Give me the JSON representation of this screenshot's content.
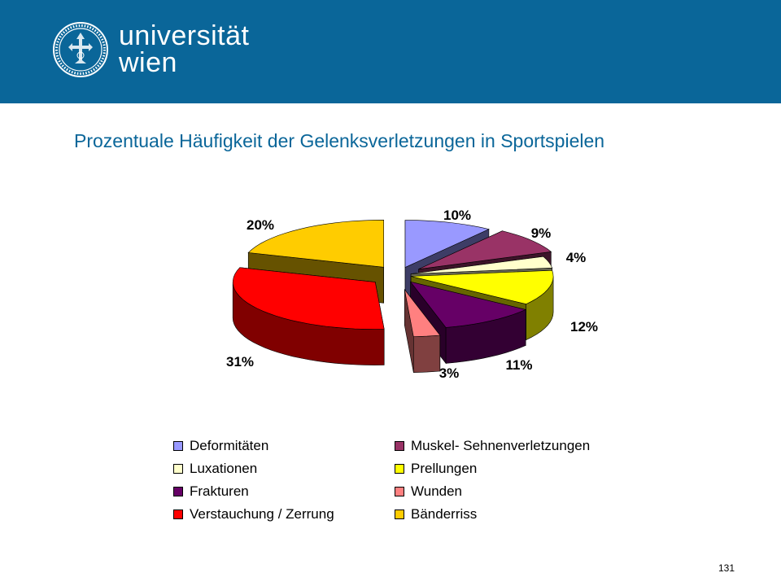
{
  "header": {
    "logo_line1": "universität",
    "logo_line2": "wien",
    "brand_color": "#0a6699",
    "seal_icon": "university-seal-icon"
  },
  "slide_title": "Prozentuale Häufigkeit der Gelenksverletzungen in Sportspielen",
  "page_number": "131",
  "chart_data": {
    "type": "pie",
    "style": "3d-exploded",
    "title": "",
    "legend_position": "bottom",
    "categories": [
      "Deformitäten",
      "Muskel- Sehnenverletzungen",
      "Luxationen",
      "Prellungen",
      "Frakturen",
      "Wunden",
      "Verstauchung / Zerrung",
      "Bänderriss"
    ],
    "values": [
      10,
      9,
      4,
      12,
      11,
      3,
      31,
      20
    ],
    "labels": [
      "10%",
      "9%",
      "4%",
      "12%",
      "11%",
      "3%",
      "31%",
      "20%"
    ],
    "colors": [
      "#9999ff",
      "#993366",
      "#ffffcc",
      "#ffff00",
      "#660066",
      "#ff8080",
      "#ff0000",
      "#ffcc00"
    ]
  }
}
